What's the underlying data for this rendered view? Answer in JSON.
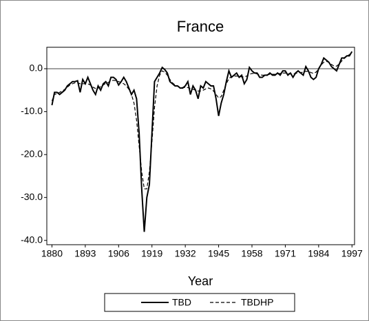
{
  "chart_data": {
    "type": "line",
    "title": "France",
    "x_label": "Year",
    "xlim": [
      1878,
      1998
    ],
    "xticks": [
      1880,
      1893,
      1906,
      1919,
      1932,
      1945,
      1958,
      1971,
      1984,
      1997
    ],
    "ylim": [
      -41,
      5
    ],
    "yticks": [
      {
        "value": 0,
        "label": "0.0"
      },
      {
        "value": -10,
        "label": "-10.0"
      },
      {
        "value": -20,
        "label": "-20.0"
      },
      {
        "value": -30,
        "label": "-30.0"
      },
      {
        "value": -40,
        "label": "-40.0"
      }
    ],
    "reference_line": 0,
    "legend": "bottom",
    "x": [
      1880,
      1881,
      1882,
      1883,
      1884,
      1885,
      1886,
      1887,
      1888,
      1889,
      1890,
      1891,
      1892,
      1893,
      1894,
      1895,
      1896,
      1897,
      1898,
      1899,
      1900,
      1901,
      1902,
      1903,
      1904,
      1905,
      1906,
      1907,
      1908,
      1909,
      1910,
      1911,
      1912,
      1913,
      1914,
      1915,
      1916,
      1917,
      1918,
      1919,
      1920,
      1921,
      1922,
      1923,
      1924,
      1925,
      1926,
      1927,
      1928,
      1929,
      1930,
      1931,
      1932,
      1933,
      1934,
      1935,
      1936,
      1937,
      1938,
      1939,
      1940,
      1941,
      1942,
      1943,
      1944,
      1945,
      1946,
      1947,
      1948,
      1949,
      1950,
      1951,
      1952,
      1953,
      1954,
      1955,
      1956,
      1957,
      1958,
      1959,
      1960,
      1961,
      1962,
      1963,
      1964,
      1965,
      1966,
      1967,
      1968,
      1969,
      1970,
      1971,
      1972,
      1973,
      1974,
      1975,
      1976,
      1977,
      1978,
      1979,
      1980,
      1981,
      1982,
      1983,
      1984,
      1985,
      1986,
      1987,
      1988,
      1989,
      1990,
      1991,
      1992,
      1993,
      1994,
      1995,
      1996,
      1997
    ],
    "series": [
      {
        "name": "TBD",
        "color": "#000000",
        "style": "solid",
        "values": [
          -8.5,
          -5.5,
          -5.5,
          -6,
          -5.5,
          -5,
          -4,
          -3.5,
          -3,
          -3,
          -2.8,
          -5.5,
          -2.5,
          -3.5,
          -2,
          -3.5,
          -5,
          -6,
          -4,
          -5,
          -3.5,
          -3,
          -4,
          -2,
          -2,
          -2.5,
          -3.8,
          -3,
          -2,
          -3,
          -4.5,
          -6,
          -5,
          -7,
          -15,
          -28,
          -38,
          -30,
          -27,
          -15,
          -3,
          -2,
          -1,
          0.3,
          -0.2,
          -1,
          -3,
          -3.5,
          -4,
          -4,
          -4.5,
          -4.5,
          -4,
          -3,
          -6,
          -4,
          -5,
          -7,
          -4,
          -4.5,
          -3,
          -3.5,
          -4,
          -4,
          -7,
          -11,
          -8,
          -6,
          -3,
          -0.5,
          -2,
          -1.5,
          -1,
          -2,
          -1.5,
          -3.5,
          -2.5,
          0.3,
          -0.5,
          -1,
          -1,
          -2,
          -2,
          -1.5,
          -1.5,
          -1,
          -1.5,
          -1.5,
          -1,
          -1.5,
          -0.5,
          -0.5,
          -1.5,
          -1,
          -2,
          -1,
          -0.5,
          -1,
          -1.5,
          0.5,
          -0.5,
          -2,
          -2.5,
          -2,
          0,
          1,
          2.5,
          2,
          1.5,
          0.5,
          0,
          -0.5,
          1,
          2.5,
          2.5,
          3,
          3,
          4
        ]
      },
      {
        "name": "TBDHP",
        "color": "#000000",
        "style": "dashed",
        "values": [
          -7.5,
          -6,
          -5.8,
          -5.5,
          -5.2,
          -4.8,
          -4.3,
          -3.8,
          -3.5,
          -3.3,
          -3.3,
          -3.5,
          -3.5,
          -3.5,
          -3.5,
          -3.8,
          -4.3,
          -4.6,
          -4.5,
          -4.2,
          -3.8,
          -3.4,
          -3.2,
          -2.8,
          -2.7,
          -2.8,
          -3,
          -3.2,
          -3.5,
          -4,
          -4.8,
          -6,
          -8,
          -12,
          -18,
          -24,
          -28,
          -28,
          -24,
          -17,
          -9,
          -4,
          -1.5,
          -0.5,
          -0.8,
          -1.5,
          -2.5,
          -3.3,
          -3.8,
          -4.1,
          -4.3,
          -4.4,
          -4.4,
          -4.4,
          -4.6,
          -4.8,
          -5,
          -5.2,
          -5.2,
          -5,
          -4.7,
          -4.5,
          -4.7,
          -5.2,
          -6,
          -6.8,
          -6.5,
          -5,
          -3.5,
          -2.3,
          -1.8,
          -1.7,
          -1.7,
          -1.8,
          -1.9,
          -1.9,
          -1.7,
          -1.3,
          -1.1,
          -1.1,
          -1.2,
          -1.4,
          -1.5,
          -1.5,
          -1.4,
          -1.3,
          -1.3,
          -1.3,
          -1.2,
          -1.1,
          -1,
          -1,
          -1.1,
          -1.2,
          -1.2,
          -1.1,
          -1,
          -0.9,
          -0.8,
          -0.6,
          -0.6,
          -0.9,
          -1.1,
          -0.8,
          0,
          0.9,
          1.5,
          1.7,
          1.5,
          1,
          0.6,
          0.6,
          1.1,
          1.8,
          2.4,
          2.9,
          3.3,
          3.7
        ]
      }
    ]
  }
}
